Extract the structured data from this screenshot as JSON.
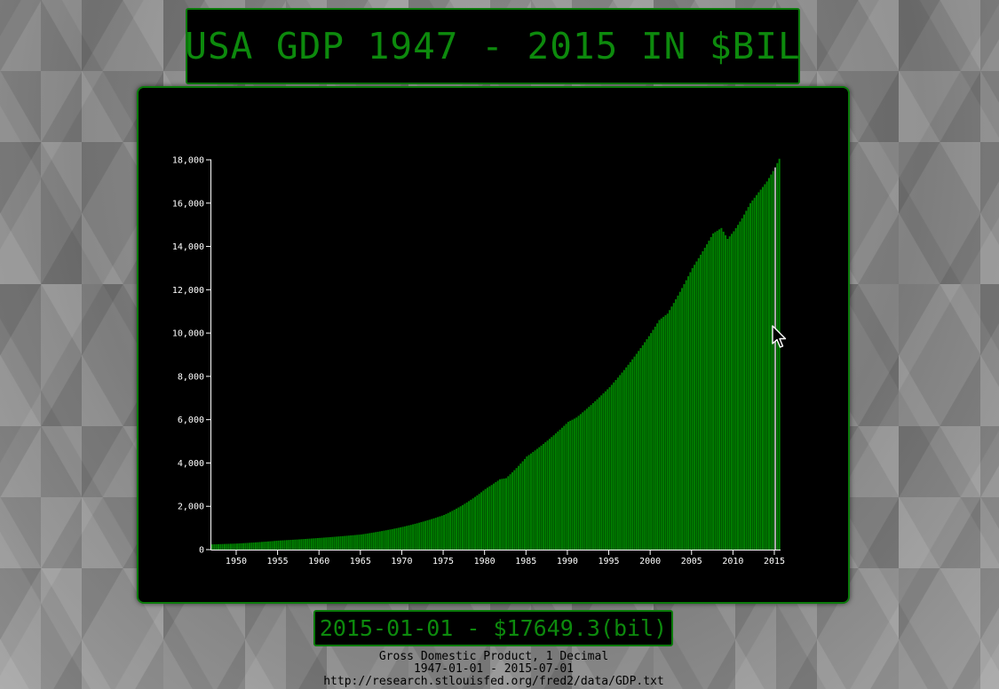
{
  "header": {
    "title": "USA GDP 1947 - 2015 IN $BIL"
  },
  "readout": {
    "text": "2015-01-01 - $17649.3(bil)"
  },
  "caption": {
    "line1": "Gross Domestic Product, 1 Decimal",
    "line2": "1947-01-01 - 2015-07-01",
    "line3": "http://research.stlouisfed.org/fred2/data/GDP.txt"
  },
  "colors": {
    "bar": "#008000",
    "title_text": "#0d8a0d",
    "axis": "#ffffff",
    "highlight_bar": "#aaaaaa"
  },
  "icons": {
    "cursor": "mouse-pointer-icon"
  },
  "chart_data": {
    "type": "bar",
    "title": "USA GDP 1947 - 2015 IN $BIL",
    "xlabel": "",
    "ylabel": "",
    "x_range": [
      "1947-01-01",
      "2015-07-01"
    ],
    "frequency": "quarterly",
    "ylim": [
      0,
      18000
    ],
    "yticks": [
      0,
      2000,
      4000,
      6000,
      8000,
      10000,
      12000,
      14000,
      16000,
      18000
    ],
    "ytick_labels": [
      "0",
      "2,000",
      "4,000",
      "6,000",
      "8,000",
      "10,000",
      "12,000",
      "14,000",
      "16,000",
      "18,000"
    ],
    "xticks": [
      1950,
      1955,
      1960,
      1965,
      1970,
      1975,
      1980,
      1985,
      1990,
      1995,
      2000,
      2005,
      2010,
      2015
    ],
    "xtick_labels": [
      "1950",
      "1955",
      "1960",
      "1965",
      "1970",
      "1975",
      "1980",
      "1985",
      "1990",
      "1995",
      "2000",
      "2005",
      "2010",
      "2015"
    ],
    "highlighted": {
      "date": "2015-01-01",
      "value": 17649.3
    },
    "anchor_points": [
      {
        "year": 1947.0,
        "value": 243
      },
      {
        "year": 1950.0,
        "value": 280
      },
      {
        "year": 1955.0,
        "value": 415
      },
      {
        "year": 1960.0,
        "value": 540
      },
      {
        "year": 1965.0,
        "value": 700
      },
      {
        "year": 1970.0,
        "value": 1050
      },
      {
        "year": 1975.0,
        "value": 1600
      },
      {
        "year": 1980.0,
        "value": 2800
      },
      {
        "year": 1981.75,
        "value": 3250
      },
      {
        "year": 1982.5,
        "value": 3300
      },
      {
        "year": 1985.0,
        "value": 4300
      },
      {
        "year": 1990.0,
        "value": 5900
      },
      {
        "year": 1991.0,
        "value": 6100
      },
      {
        "year": 1995.0,
        "value": 7500
      },
      {
        "year": 2000.0,
        "value": 10000
      },
      {
        "year": 2001.0,
        "value": 10600
      },
      {
        "year": 2002.0,
        "value": 10900
      },
      {
        "year": 2005.0,
        "value": 13000
      },
      {
        "year": 2007.5,
        "value": 14600
      },
      {
        "year": 2008.5,
        "value": 14850
      },
      {
        "year": 2009.25,
        "value": 14350
      },
      {
        "year": 2010.0,
        "value": 14700
      },
      {
        "year": 2011.0,
        "value": 15300
      },
      {
        "year": 2012.0,
        "value": 16000
      },
      {
        "year": 2013.0,
        "value": 16500
      },
      {
        "year": 2014.0,
        "value": 17000
      },
      {
        "year": 2015.0,
        "value": 17649.3
      },
      {
        "year": 2015.5,
        "value": 18050
      }
    ]
  }
}
